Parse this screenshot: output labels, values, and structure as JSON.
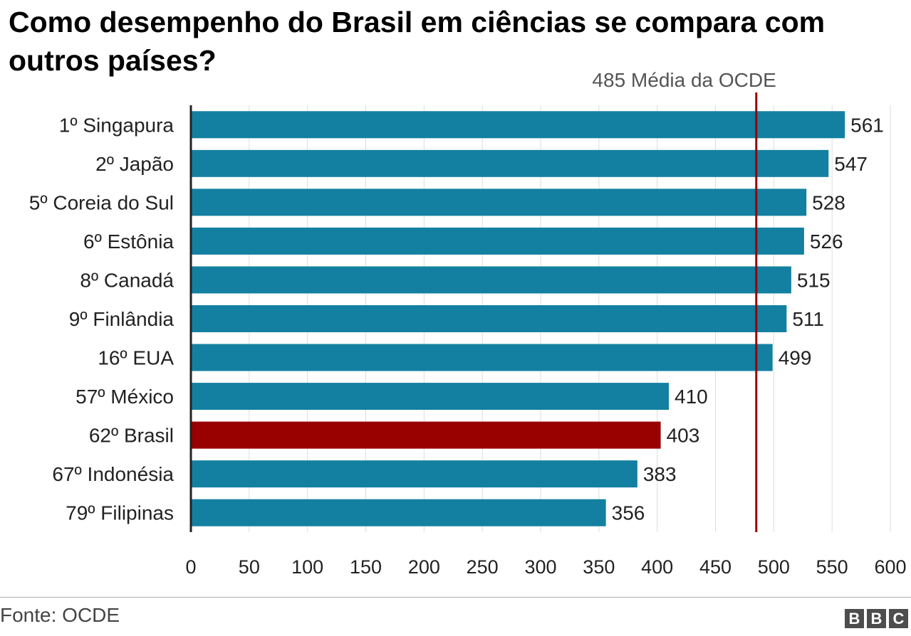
{
  "chart_data": {
    "type": "bar",
    "orientation": "horizontal",
    "title": "Como desempenho do Brasil em ciências se compara com outros países?",
    "categories": [
      "1º Singapura",
      "2º Japão",
      "5º Coreia do Sul",
      "6º Estônia",
      "8º Canadá",
      "9º Finlândia",
      "16º EUA",
      "57º México",
      "62º Brasil",
      "67º Indonésia",
      "79º Filipinas"
    ],
    "values": [
      561,
      547,
      528,
      526,
      515,
      511,
      499,
      410,
      403,
      383,
      356
    ],
    "highlight": "62º Brasil",
    "xlim": [
      0,
      600
    ],
    "xticks": [
      0,
      50,
      100,
      150,
      200,
      250,
      300,
      350,
      400,
      450,
      500,
      550,
      600
    ],
    "grid": true,
    "reference_line": {
      "value": 485,
      "label": "485 Média da OCDE"
    },
    "colors": {
      "bar": "#1380A1",
      "highlight": "#990000",
      "reference": "#990000"
    }
  },
  "footer": {
    "source": "Fonte: OCDE",
    "logo": [
      "B",
      "B",
      "C"
    ]
  }
}
